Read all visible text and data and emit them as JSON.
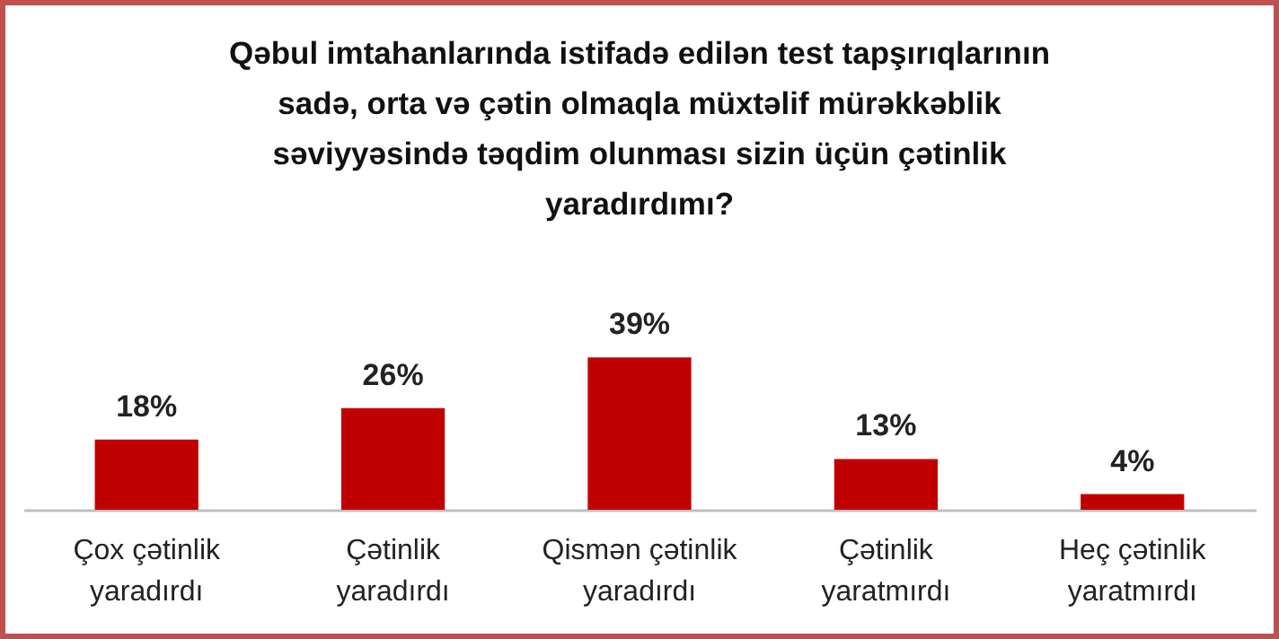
{
  "chart_data": {
    "type": "bar",
    "title": "Qəbul imtahanlarında istifadə edilən test tapşırıqlarının sadə, orta və çətin olmaqla müxtəlif mürəkkəblik səviyyəsində təqdim olunması sizin üçün çətinlik yaradırdımı?",
    "categories": [
      "Çox çətinlik yaradırdı",
      "Çətinlik yaradırdı",
      "Qismən çətinlik yaradırdı",
      "Çətinlik yaratmırdı",
      "Heç çətinlik yaratmırdı"
    ],
    "values": [
      18,
      26,
      39,
      13,
      4
    ],
    "color": "#c00000",
    "value_labels": [
      "18%",
      "26%",
      "39%",
      "13%",
      "4%"
    ]
  }
}
